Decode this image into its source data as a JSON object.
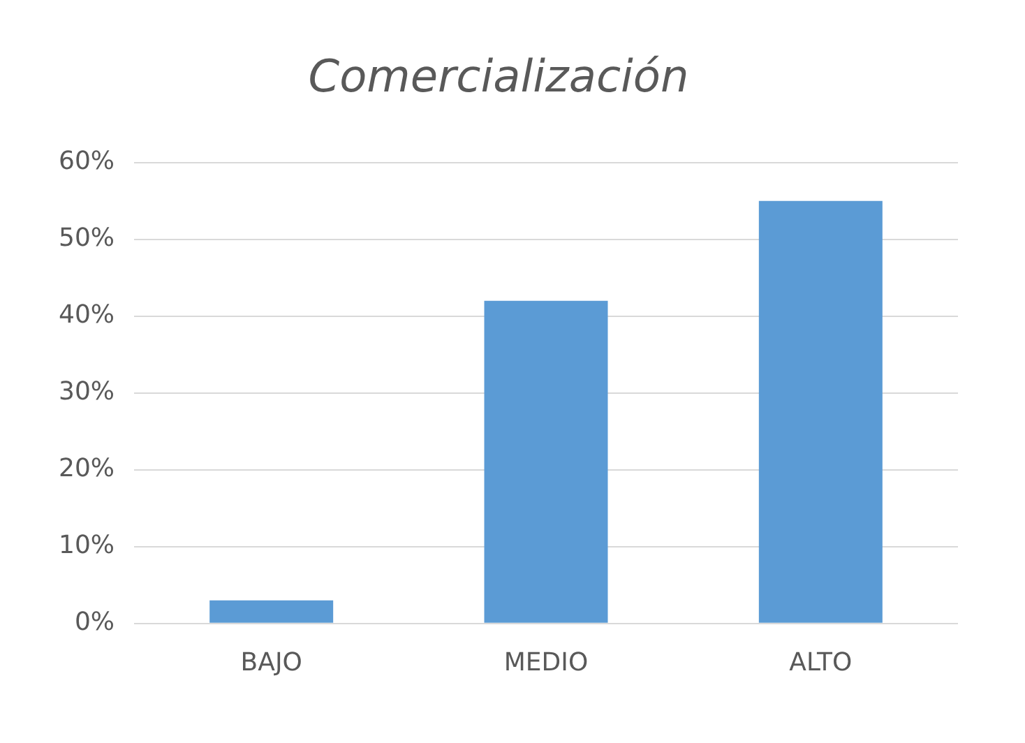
{
  "chart_data": {
    "type": "bar",
    "title": "Comercialización",
    "categories": [
      "BAJO",
      "MEDIO",
      "ALTO"
    ],
    "values": [
      3,
      42,
      55
    ],
    "color": "#5b9bd5",
    "ylim": [
      0,
      60
    ],
    "yticks": [
      {
        "value": 0,
        "label": "0%"
      },
      {
        "value": 10,
        "label": "10%"
      },
      {
        "value": 20,
        "label": "20%"
      },
      {
        "value": 30,
        "label": "30%"
      },
      {
        "value": 40,
        "label": "40%"
      },
      {
        "value": 50,
        "label": "50%"
      },
      {
        "value": 60,
        "label": "60%"
      }
    ],
    "grid": "y",
    "legend": false
  }
}
